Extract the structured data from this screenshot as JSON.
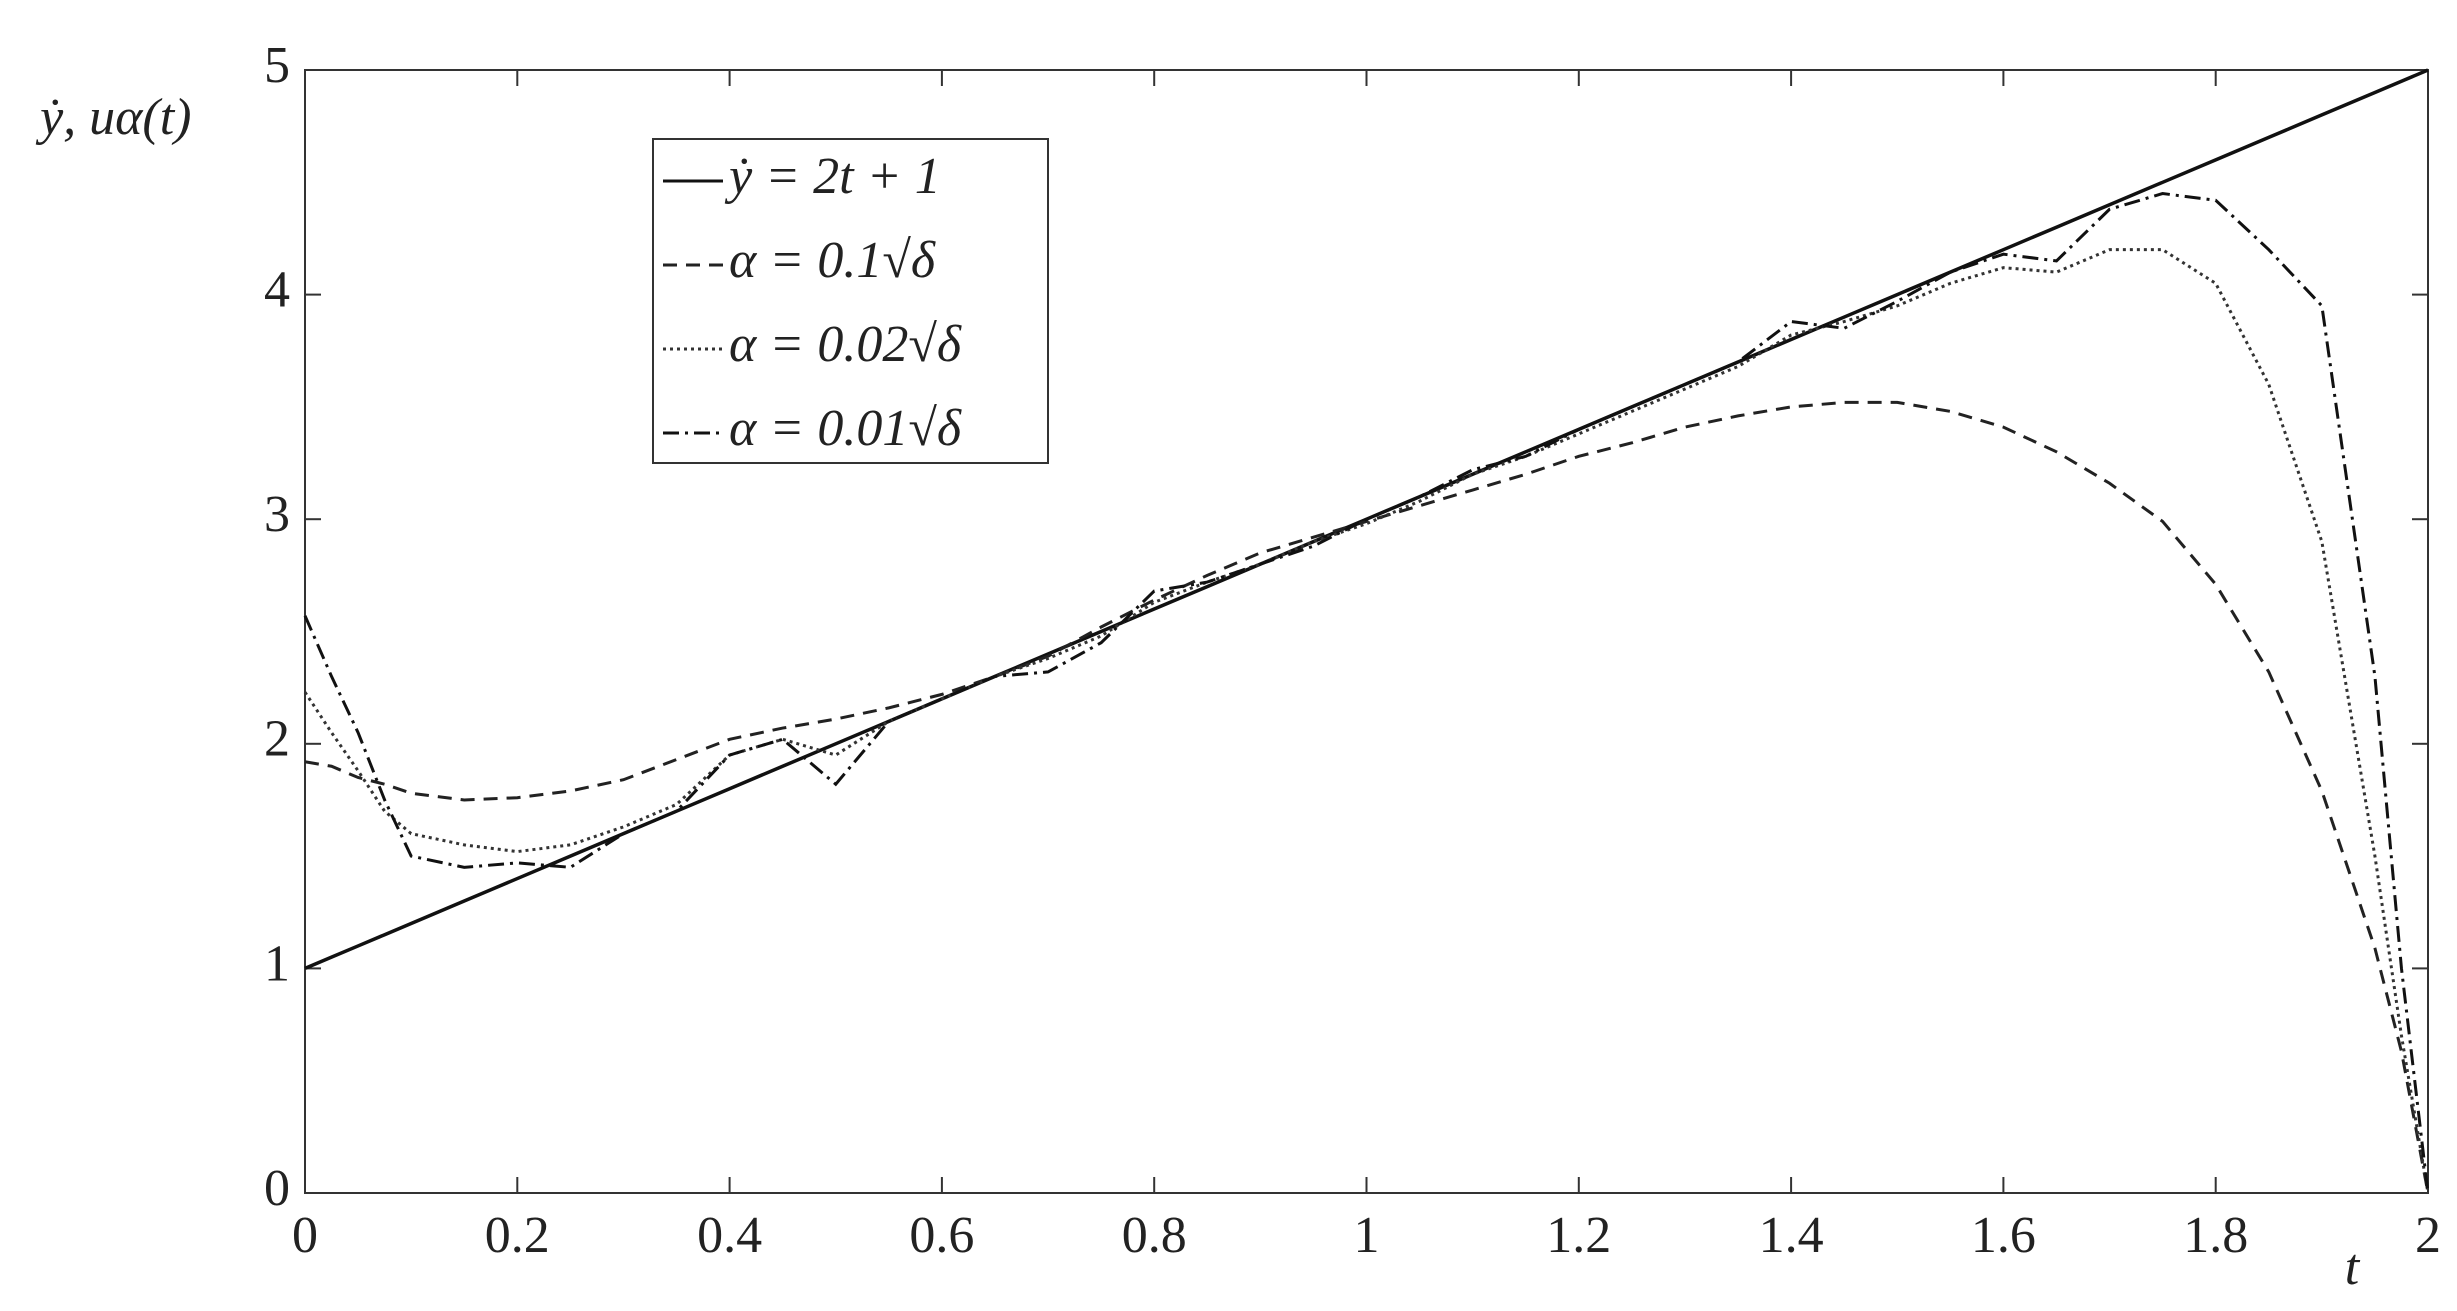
{
  "chart_data": {
    "type": "line",
    "x_label": "t",
    "y_label": "ẏ, uα(t)",
    "x": [
      0,
      0.025,
      0.05,
      0.075,
      0.1,
      0.15,
      0.2,
      0.25,
      0.3,
      0.35,
      0.4,
      0.45,
      0.5,
      0.55,
      0.6,
      0.65,
      0.7,
      0.75,
      0.8,
      0.85,
      0.9,
      0.95,
      1,
      1.05,
      1.1,
      1.15,
      1.2,
      1.25,
      1.3,
      1.35,
      1.4,
      1.45,
      1.5,
      1.55,
      1.6,
      1.65,
      1.7,
      1.75,
      1.8,
      1.85,
      1.9,
      1.95,
      1.975,
      2
    ],
    "series": [
      {
        "name": "ẏ = 2t + 1",
        "color": "#111111",
        "line_style": "solid",
        "values": [
          1,
          1.05,
          1.1,
          1.15,
          1.2,
          1.3,
          1.4,
          1.5,
          1.6,
          1.7,
          1.8,
          1.9,
          2,
          2.1,
          2.2,
          2.3,
          2.4,
          2.5,
          2.6,
          2.7,
          2.8,
          2.9,
          3,
          3.1,
          3.2,
          3.3,
          3.4,
          3.5,
          3.6,
          3.7,
          3.8,
          3.9,
          4,
          4.1,
          4.2,
          4.3,
          4.4,
          4.5,
          4.6,
          4.7,
          4.8,
          4.9,
          4.95,
          5
        ]
      },
      {
        "name": "α = 0.1√δ",
        "color": "#222222",
        "line_style": "dashed",
        "values": [
          1.92,
          1.9,
          1.85,
          1.82,
          1.78,
          1.75,
          1.76,
          1.79,
          1.84,
          1.93,
          2.02,
          2.07,
          2.11,
          2.16,
          2.22,
          2.3,
          2.39,
          2.52,
          2.64,
          2.75,
          2.85,
          2.92,
          2.99,
          3.06,
          3.13,
          3.2,
          3.28,
          3.34,
          3.41,
          3.46,
          3.5,
          3.52,
          3.52,
          3.48,
          3.41,
          3.3,
          3.16,
          2.99,
          2.71,
          2.32,
          1.79,
          1.09,
          0.63,
          0
        ]
      },
      {
        "name": "α = 0.02√δ",
        "color": "#333333",
        "line_style": "dotted",
        "values": [
          2.23,
          2.05,
          1.88,
          1.7,
          1.6,
          1.55,
          1.52,
          1.55,
          1.63,
          1.73,
          1.95,
          2.02,
          1.95,
          2.1,
          2.2,
          2.3,
          2.38,
          2.48,
          2.63,
          2.72,
          2.8,
          2.9,
          2.98,
          3.08,
          3.2,
          3.28,
          3.38,
          3.48,
          3.58,
          3.68,
          3.82,
          3.88,
          3.95,
          4.05,
          4.12,
          4.1,
          4.2,
          4.2,
          4.05,
          3.6,
          2.9,
          1.5,
          0.7,
          0
        ]
      },
      {
        "name": "α = 0.01√δ",
        "color": "#111111",
        "line_style": "dashdot",
        "values": [
          2.57,
          2.3,
          2.05,
          1.75,
          1.5,
          1.45,
          1.47,
          1.45,
          1.6,
          1.7,
          1.95,
          2.02,
          1.82,
          2.1,
          2.2,
          2.3,
          2.32,
          2.45,
          2.68,
          2.72,
          2.8,
          2.88,
          3,
          3.1,
          3.22,
          3.28,
          3.4,
          3.5,
          3.6,
          3.7,
          3.88,
          3.85,
          3.97,
          4.1,
          4.18,
          4.15,
          4.38,
          4.45,
          4.42,
          4.2,
          3.95,
          2.3,
          1,
          0
        ]
      }
    ],
    "xlim": [
      0,
      2
    ],
    "xticks": [
      0,
      0.2,
      0.4,
      0.6,
      0.8,
      1,
      1.2,
      1.4,
      1.6,
      1.8,
      2
    ],
    "ylim": [
      0,
      5
    ],
    "yticks": [
      0,
      1,
      2,
      3,
      4,
      5
    ],
    "grid": false,
    "legend": "upper left"
  }
}
